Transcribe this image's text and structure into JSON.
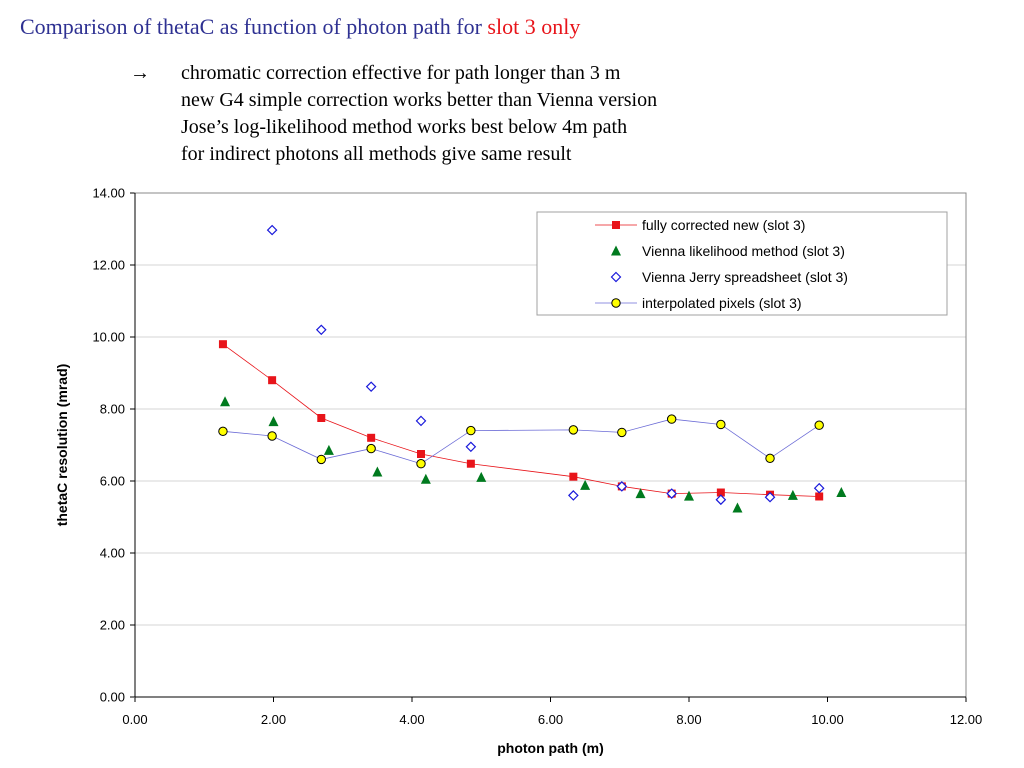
{
  "header": {
    "title_main": "Comparison of thetaC as function of photon path for ",
    "title_highlight": "slot 3 only"
  },
  "notes": {
    "arrow": "→",
    "lines": [
      "chromatic correction effective for path longer than 3 m",
      "new G4 simple correction works better than Vienna version",
      "Jose’s log-likelihood method works best below 4m path",
      "for indirect photons all methods give same result"
    ]
  },
  "chart_data": {
    "type": "scatter",
    "xlabel": "photon path (m)",
    "ylabel": "thetaC resolution (mrad)",
    "xlim": [
      0,
      12
    ],
    "ylim": [
      0,
      14
    ],
    "x_ticks": [
      "0.00",
      "2.00",
      "4.00",
      "6.00",
      "8.00",
      "10.00",
      "12.00"
    ],
    "y_ticks": [
      "0.00",
      "2.00",
      "4.00",
      "6.00",
      "8.00",
      "10.00",
      "12.00",
      "14.00"
    ],
    "grid": "horizontal",
    "legend_position": "top-right",
    "series": [
      {
        "name": "fully corrected new (slot 3)",
        "marker": "square",
        "color": "#e8141a",
        "line_color": "#e8141a",
        "connected": true,
        "points": [
          [
            1.27,
            9.8
          ],
          [
            1.98,
            8.8
          ],
          [
            2.69,
            7.75
          ],
          [
            3.41,
            7.2
          ],
          [
            4.13,
            6.75
          ],
          [
            4.85,
            6.48
          ],
          [
            6.33,
            6.12
          ],
          [
            7.03,
            5.85
          ],
          [
            7.75,
            5.65
          ],
          [
            8.46,
            5.68
          ],
          [
            9.17,
            5.62
          ],
          [
            9.88,
            5.57
          ]
        ]
      },
      {
        "name": "Vienna likelihood method (slot 3)",
        "marker": "triangle",
        "color": "#007a1e",
        "connected": false,
        "points": [
          [
            1.3,
            8.2
          ],
          [
            2.0,
            7.65
          ],
          [
            2.8,
            6.85
          ],
          [
            3.5,
            6.25
          ],
          [
            4.2,
            6.05
          ],
          [
            5.0,
            6.1
          ],
          [
            6.5,
            5.88
          ],
          [
            7.3,
            5.65
          ],
          [
            8.0,
            5.58
          ],
          [
            8.7,
            5.25
          ],
          [
            9.5,
            5.6
          ],
          [
            10.2,
            5.68
          ]
        ]
      },
      {
        "name": "Vienna Jerry spreadsheet (slot 3)",
        "marker": "diamond",
        "color": "#1a1adb",
        "connected": false,
        "points": [
          [
            1.98,
            12.97
          ],
          [
            2.69,
            10.2
          ],
          [
            3.41,
            8.62
          ],
          [
            4.13,
            7.67
          ],
          [
            4.85,
            6.95
          ],
          [
            6.33,
            5.6
          ],
          [
            7.03,
            5.85
          ],
          [
            7.75,
            5.65
          ],
          [
            8.46,
            5.48
          ],
          [
            9.17,
            5.55
          ],
          [
            9.88,
            5.8
          ]
        ]
      },
      {
        "name": "interpolated pixels (slot 3)",
        "marker": "circle",
        "color": "#ffff00",
        "line_color": "#6b6bd6",
        "connected": true,
        "points": [
          [
            1.27,
            7.38
          ],
          [
            1.98,
            7.25
          ],
          [
            2.69,
            6.6
          ],
          [
            3.41,
            6.9
          ],
          [
            4.13,
            6.48
          ],
          [
            4.85,
            7.4
          ],
          [
            6.33,
            7.42
          ],
          [
            7.03,
            7.35
          ],
          [
            7.75,
            7.72
          ],
          [
            8.46,
            7.57
          ],
          [
            9.17,
            6.63
          ],
          [
            9.88,
            7.55
          ]
        ]
      }
    ]
  }
}
